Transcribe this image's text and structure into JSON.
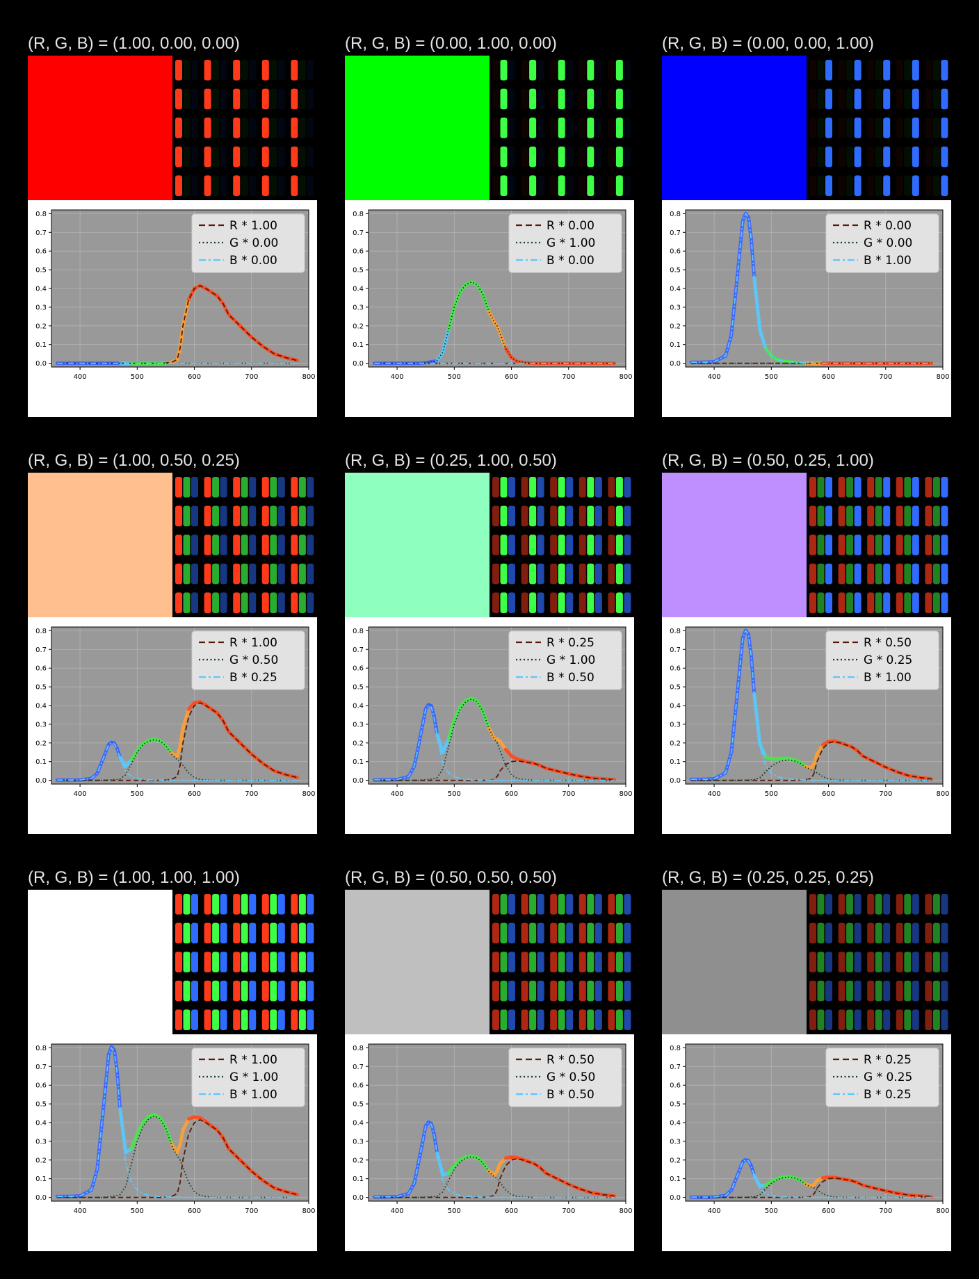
{
  "colors": {
    "page_bg": "#000000",
    "plot_bg": "#999999",
    "red": "#ff4a1c",
    "green": "#46e84a",
    "blue": "#3d63ff",
    "ink": "#000000"
  },
  "axes": {
    "x_ticks": [
      "400",
      "500",
      "600",
      "700",
      "800"
    ],
    "y_ticks": [
      "0.0",
      "0.1",
      "0.2",
      "0.3",
      "0.4",
      "0.5",
      "0.6",
      "0.7",
      "0.8"
    ],
    "xlim": [
      350,
      800
    ],
    "ylim": [
      -0.02,
      0.82
    ],
    "grid": true,
    "legend_position": "top-right"
  },
  "panels": [
    {
      "title": "(R, G, B) = (1.00, 0.00, 0.00)",
      "swatch": "#ff0000",
      "rgb": [
        1.0,
        0.0,
        0.0
      ],
      "legend": [
        "R * 1.00",
        "G * 0.00",
        "B * 0.00"
      ]
    },
    {
      "title": "(R, G, B) = (0.00, 1.00, 0.00)",
      "swatch": "#00ff00",
      "rgb": [
        0.0,
        1.0,
        0.0
      ],
      "legend": [
        "R * 0.00",
        "G * 1.00",
        "B * 0.00"
      ]
    },
    {
      "title": "(R, G, B) = (0.00, 0.00, 1.00)",
      "swatch": "#0000ff",
      "rgb": [
        0.0,
        0.0,
        1.0
      ],
      "legend": [
        "R * 0.00",
        "G * 0.00",
        "B * 1.00"
      ]
    },
    {
      "title": "(R, G, B) = (1.00, 0.50, 0.25)",
      "swatch": "#ffbf8f",
      "rgb": [
        1.0,
        0.5,
        0.25
      ],
      "legend": [
        "R * 1.00",
        "G * 0.50",
        "B * 0.25"
      ]
    },
    {
      "title": "(R, G, B) = (0.25, 1.00, 0.50)",
      "swatch": "#8fffbf",
      "rgb": [
        0.25,
        1.0,
        0.5
      ],
      "legend": [
        "R * 0.25",
        "G * 1.00",
        "B * 0.50"
      ]
    },
    {
      "title": "(R, G, B) = (0.50, 0.25, 1.00)",
      "swatch": "#bf8fff",
      "rgb": [
        0.5,
        0.25,
        1.0
      ],
      "legend": [
        "R * 0.50",
        "G * 0.25",
        "B * 1.00"
      ]
    },
    {
      "title": "(R, G, B) = (1.00, 1.00, 1.00)",
      "swatch": "#ffffff",
      "rgb": [
        1.0,
        1.0,
        1.0
      ],
      "legend": [
        "R * 1.00",
        "G * 1.00",
        "B * 1.00"
      ]
    },
    {
      "title": "(R, G, B) = (0.50, 0.50, 0.50)",
      "swatch": "#bfbfbf",
      "rgb": [
        0.5,
        0.5,
        0.5
      ],
      "legend": [
        "R * 0.50",
        "G * 0.50",
        "B * 0.50"
      ]
    },
    {
      "title": "(R, G, B) = (0.25, 0.25, 0.25)",
      "swatch": "#8f8f8f",
      "rgb": [
        0.25,
        0.25,
        0.25
      ],
      "legend": [
        "R * 0.25",
        "G * 0.25",
        "B * 0.25"
      ]
    }
  ],
  "chart_data": {
    "type": "line",
    "xlim": [
      350,
      800
    ],
    "ylim": [
      -0.02,
      0.82
    ],
    "x": [
      360,
      380,
      400,
      420,
      430,
      440,
      450,
      455,
      460,
      465,
      470,
      480,
      490,
      500,
      510,
      520,
      530,
      540,
      550,
      560,
      570,
      575,
      580,
      590,
      600,
      610,
      620,
      630,
      640,
      650,
      660,
      680,
      700,
      720,
      740,
      760,
      780
    ],
    "series": [
      {
        "name": "R",
        "values": [
          0,
          0,
          0,
          0,
          0,
          0,
          0,
          0,
          0,
          0,
          0,
          0,
          0,
          0,
          0,
          0,
          0,
          0,
          0.002,
          0.005,
          0.02,
          0.08,
          0.2,
          0.34,
          0.4,
          0.415,
          0.4,
          0.38,
          0.36,
          0.32,
          0.26,
          0.2,
          0.14,
          0.09,
          0.05,
          0.03,
          0.015
        ]
      },
      {
        "name": "G",
        "values": [
          0,
          0,
          0,
          0,
          0,
          0,
          0.003,
          0.005,
          0.008,
          0.01,
          0.015,
          0.06,
          0.18,
          0.3,
          0.38,
          0.42,
          0.435,
          0.42,
          0.37,
          0.28,
          0.22,
          0.2,
          0.16,
          0.08,
          0.03,
          0.01,
          0.005,
          0.002,
          0,
          0,
          0,
          0,
          0,
          0,
          0,
          0,
          0
        ]
      },
      {
        "name": "B",
        "values": [
          0.005,
          0.005,
          0.008,
          0.04,
          0.15,
          0.45,
          0.76,
          0.8,
          0.78,
          0.66,
          0.46,
          0.18,
          0.08,
          0.04,
          0.02,
          0.012,
          0.008,
          0.005,
          0.003,
          0.002,
          0.001,
          0,
          0,
          0,
          0,
          0,
          0,
          0,
          0,
          0,
          0,
          0,
          0,
          0,
          0,
          0,
          0
        ]
      }
    ]
  }
}
